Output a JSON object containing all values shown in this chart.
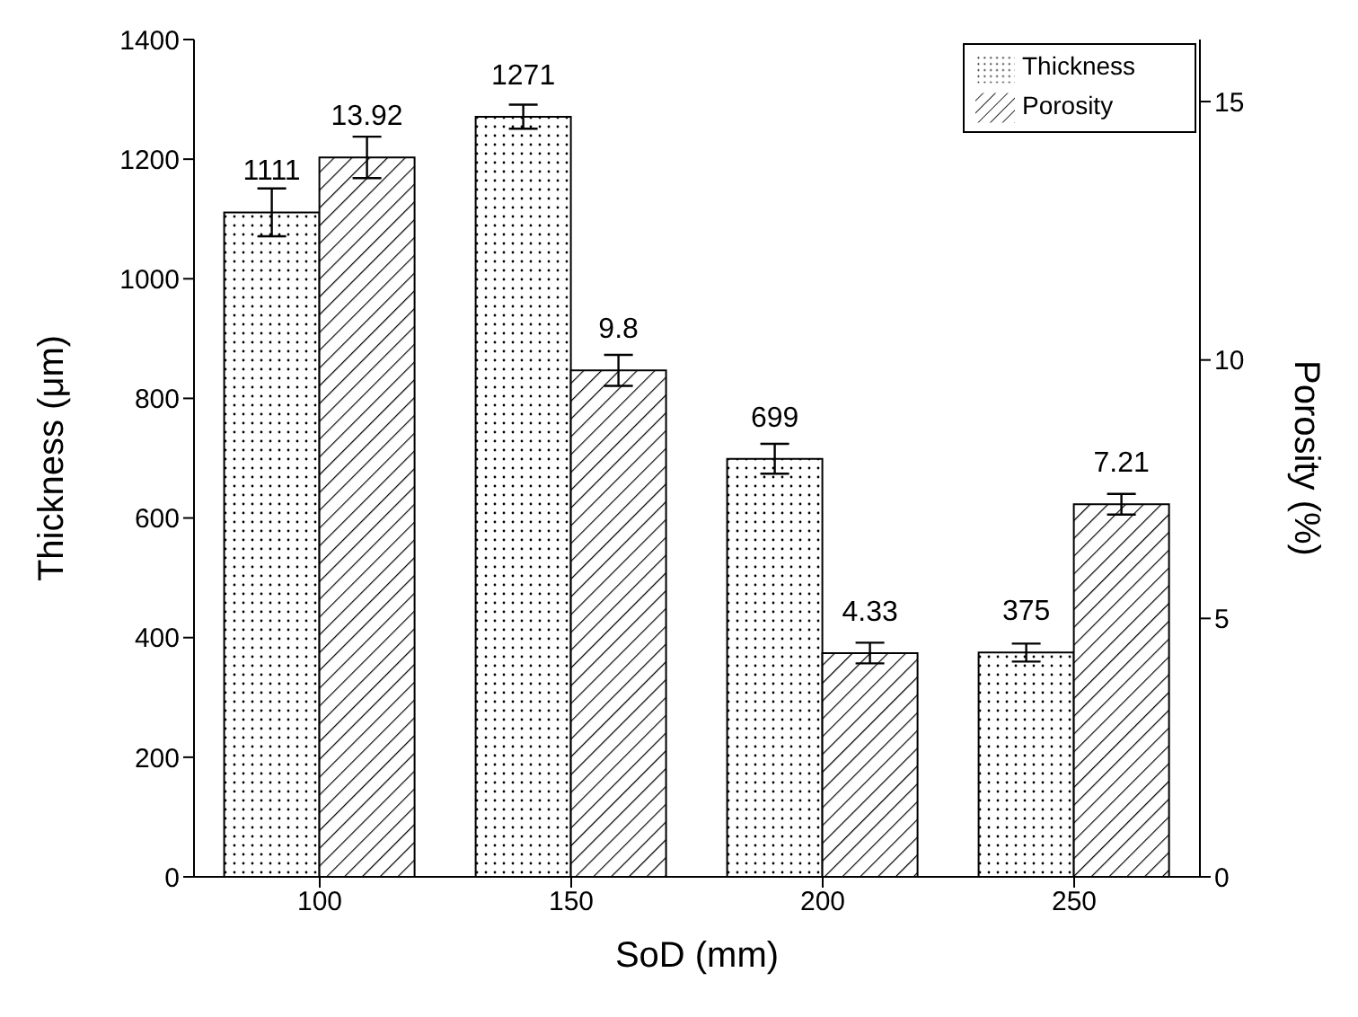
{
  "chart_data": {
    "type": "bar",
    "xlabel": "SoD (mm)",
    "ylabel": "Thickness (μm)",
    "y2label": "Porosity (%)",
    "categories": [
      "100",
      "150",
      "200",
      "250"
    ],
    "series": [
      {
        "name": "Thickness",
        "color": "#000000",
        "values": [
          1111,
          1271,
          699,
          375
        ],
        "errors": [
          40,
          20,
          25,
          15
        ]
      },
      {
        "name": "Porosity",
        "color": "#000000",
        "axis": "y2",
        "values": [
          13.92,
          9.8,
          4.33,
          7.21
        ],
        "errors": [
          0.4,
          0.3,
          0.2,
          0.2
        ]
      }
    ],
    "ylim": [
      0,
      1400
    ],
    "yticks": [
      0,
      200,
      400,
      600,
      800,
      1000,
      1200,
      1400
    ],
    "y2lim": [
      0,
      16.2
    ],
    "y2ticks": [
      0,
      5,
      10,
      15
    ],
    "data_labels": true,
    "legend": "top right",
    "grid": false
  }
}
